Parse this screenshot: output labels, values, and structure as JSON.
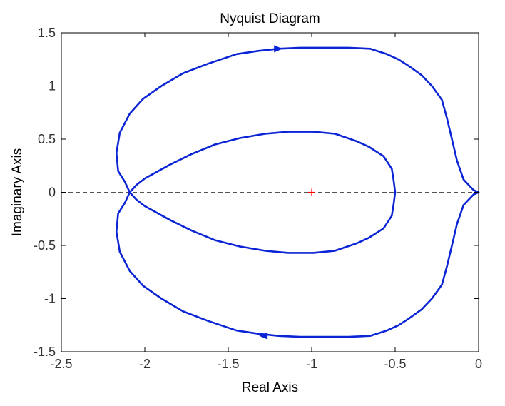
{
  "chart_data": {
    "type": "line",
    "title": "Nyquist Diagram",
    "xlabel": "Real Axis",
    "ylabel": "Imaginary Axis",
    "xlim": [
      -2.5,
      0
    ],
    "ylim": [
      -1.5,
      1.5
    ],
    "xticks": [
      "-2.5",
      "-2",
      "-1.5",
      "-1",
      "-0.5",
      "0"
    ],
    "yticks": [
      "1.5",
      "1",
      "0.5",
      "0",
      "-0.5",
      "-1",
      "-1.5"
    ],
    "grid": false,
    "legend": "none",
    "critical_point": {
      "x": -1,
      "y": 0,
      "marker": "+",
      "color": "#ff0000"
    },
    "reference_line": {
      "y": 0,
      "style": "dashed",
      "color": "#555555"
    },
    "series": [
      {
        "color": "#0b24d6",
        "x": [
          0,
          -0.03,
          -0.09,
          -0.13,
          -0.16,
          -0.19,
          -0.22,
          -0.28,
          -0.34,
          -0.42,
          -0.48,
          -0.55,
          -0.65,
          -0.78,
          -0.93,
          -1.07,
          -1.2,
          -1.32,
          -1.45,
          -1.62,
          -1.77,
          -1.9,
          -2.01,
          -2.09,
          -2.15,
          -2.17,
          -2.16,
          -2.12,
          -2.09,
          -2.05,
          -2.0,
          -1.85,
          -1.72,
          -1.58,
          -1.43,
          -1.28,
          -1.14,
          -0.99,
          -0.86,
          -0.73,
          -0.66,
          -0.57,
          -0.54,
          -0.52,
          -0.51,
          -0.5
        ],
        "y": [
          0,
          0.02,
          0.12,
          0.3,
          0.5,
          0.7,
          0.87,
          1.0,
          1.1,
          1.19,
          1.25,
          1.3,
          1.35,
          1.36,
          1.36,
          1.36,
          1.35,
          1.33,
          1.3,
          1.21,
          1.12,
          1.0,
          0.88,
          0.74,
          0.56,
          0.37,
          0.2,
          0.1,
          0.0,
          -0.07,
          -0.13,
          -0.26,
          -0.36,
          -0.45,
          -0.51,
          -0.55,
          -0.57,
          -0.57,
          -0.55,
          -0.48,
          -0.43,
          -0.34,
          -0.27,
          -0.22,
          -0.12,
          0.0
        ]
      },
      {
        "color": "#0b24d6",
        "x": [
          0,
          -0.03,
          -0.09,
          -0.13,
          -0.16,
          -0.19,
          -0.22,
          -0.28,
          -0.34,
          -0.42,
          -0.48,
          -0.55,
          -0.65,
          -0.78,
          -0.93,
          -1.07,
          -1.2,
          -1.32,
          -1.45,
          -1.62,
          -1.77,
          -1.9,
          -2.01,
          -2.09,
          -2.15,
          -2.17,
          -2.16,
          -2.12,
          -2.09,
          -2.05,
          -2.0,
          -1.85,
          -1.72,
          -1.58,
          -1.43,
          -1.28,
          -1.14,
          -0.99,
          -0.86,
          -0.73,
          -0.66,
          -0.57,
          -0.54,
          -0.52,
          -0.51,
          -0.5
        ],
        "y": [
          0,
          -0.02,
          -0.12,
          -0.3,
          -0.5,
          -0.7,
          -0.87,
          -1.0,
          -1.1,
          -1.19,
          -1.25,
          -1.3,
          -1.35,
          -1.36,
          -1.36,
          -1.36,
          -1.35,
          -1.33,
          -1.3,
          -1.21,
          -1.12,
          -1.0,
          -0.88,
          -0.74,
          -0.56,
          -0.37,
          -0.2,
          -0.1,
          0.0,
          0.07,
          0.13,
          0.26,
          0.36,
          0.45,
          0.51,
          0.55,
          0.57,
          0.57,
          0.55,
          0.48,
          0.43,
          0.34,
          0.27,
          0.22,
          0.12,
          0.0
        ]
      }
    ],
    "arrows": [
      {
        "x": -1.2,
        "y": 1.35,
        "direction": "right",
        "color": "#0b24d6"
      },
      {
        "x": -1.29,
        "y": -1.35,
        "direction": "left",
        "color": "#0b24d6"
      }
    ]
  }
}
